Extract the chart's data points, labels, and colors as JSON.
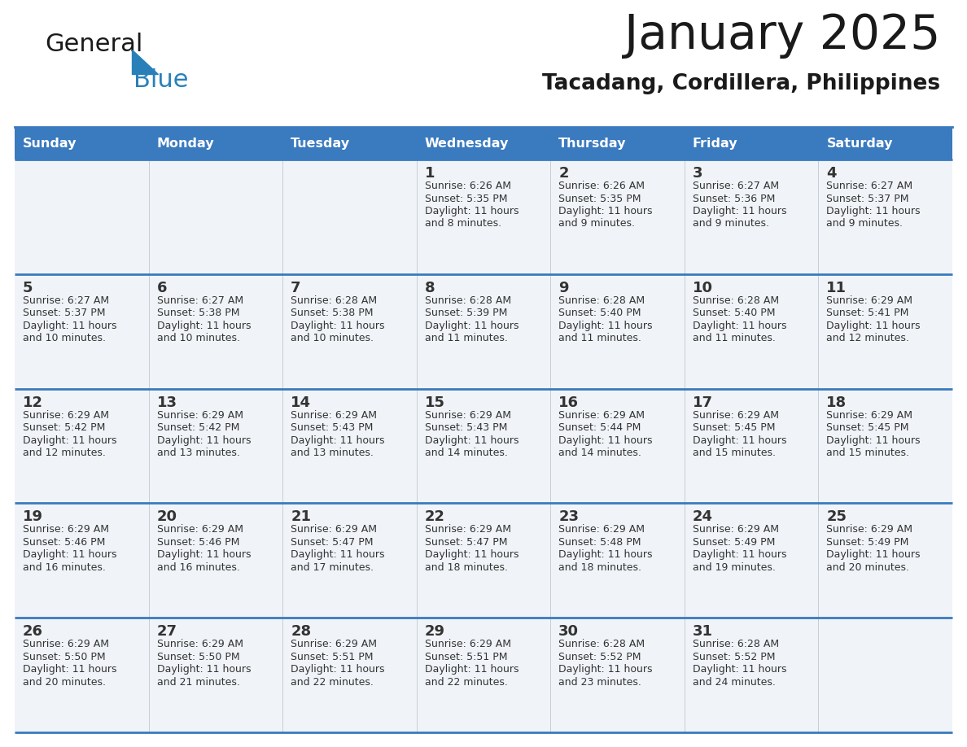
{
  "title": "January 2025",
  "subtitle": "Tacadang, Cordillera, Philippines",
  "days_of_week": [
    "Sunday",
    "Monday",
    "Tuesday",
    "Wednesday",
    "Thursday",
    "Friday",
    "Saturday"
  ],
  "header_bg": "#3a7abf",
  "header_text": "#ffffff",
  "cell_bg": "#f0f4f8",
  "cell_bg_alt": "#ffffff",
  "cell_text_color": "#333333",
  "divider_color": "#3a7abf",
  "title_color": "#1a1a1a",
  "subtitle_color": "#1a1a1a",
  "logo_general_color": "#1a1a1a",
  "logo_blue_color": "#2980b9",
  "triangle_color": "#2980b9",
  "calendar_data": [
    [
      null,
      null,
      null,
      {
        "day": 1,
        "sunrise": "6:26 AM",
        "sunset": "5:35 PM",
        "daylight": "11 hours and 8 minutes"
      },
      {
        "day": 2,
        "sunrise": "6:26 AM",
        "sunset": "5:35 PM",
        "daylight": "11 hours and 9 minutes"
      },
      {
        "day": 3,
        "sunrise": "6:27 AM",
        "sunset": "5:36 PM",
        "daylight": "11 hours and 9 minutes"
      },
      {
        "day": 4,
        "sunrise": "6:27 AM",
        "sunset": "5:37 PM",
        "daylight": "11 hours and 9 minutes"
      }
    ],
    [
      {
        "day": 5,
        "sunrise": "6:27 AM",
        "sunset": "5:37 PM",
        "daylight": "11 hours and 10 minutes"
      },
      {
        "day": 6,
        "sunrise": "6:27 AM",
        "sunset": "5:38 PM",
        "daylight": "11 hours and 10 minutes"
      },
      {
        "day": 7,
        "sunrise": "6:28 AM",
        "sunset": "5:38 PM",
        "daylight": "11 hours and 10 minutes"
      },
      {
        "day": 8,
        "sunrise": "6:28 AM",
        "sunset": "5:39 PM",
        "daylight": "11 hours and 11 minutes"
      },
      {
        "day": 9,
        "sunrise": "6:28 AM",
        "sunset": "5:40 PM",
        "daylight": "11 hours and 11 minutes"
      },
      {
        "day": 10,
        "sunrise": "6:28 AM",
        "sunset": "5:40 PM",
        "daylight": "11 hours and 11 minutes"
      },
      {
        "day": 11,
        "sunrise": "6:29 AM",
        "sunset": "5:41 PM",
        "daylight": "11 hours and 12 minutes"
      }
    ],
    [
      {
        "day": 12,
        "sunrise": "6:29 AM",
        "sunset": "5:42 PM",
        "daylight": "11 hours and 12 minutes"
      },
      {
        "day": 13,
        "sunrise": "6:29 AM",
        "sunset": "5:42 PM",
        "daylight": "11 hours and 13 minutes"
      },
      {
        "day": 14,
        "sunrise": "6:29 AM",
        "sunset": "5:43 PM",
        "daylight": "11 hours and 13 minutes"
      },
      {
        "day": 15,
        "sunrise": "6:29 AM",
        "sunset": "5:43 PM",
        "daylight": "11 hours and 14 minutes"
      },
      {
        "day": 16,
        "sunrise": "6:29 AM",
        "sunset": "5:44 PM",
        "daylight": "11 hours and 14 minutes"
      },
      {
        "day": 17,
        "sunrise": "6:29 AM",
        "sunset": "5:45 PM",
        "daylight": "11 hours and 15 minutes"
      },
      {
        "day": 18,
        "sunrise": "6:29 AM",
        "sunset": "5:45 PM",
        "daylight": "11 hours and 15 minutes"
      }
    ],
    [
      {
        "day": 19,
        "sunrise": "6:29 AM",
        "sunset": "5:46 PM",
        "daylight": "11 hours and 16 minutes"
      },
      {
        "day": 20,
        "sunrise": "6:29 AM",
        "sunset": "5:46 PM",
        "daylight": "11 hours and 16 minutes"
      },
      {
        "day": 21,
        "sunrise": "6:29 AM",
        "sunset": "5:47 PM",
        "daylight": "11 hours and 17 minutes"
      },
      {
        "day": 22,
        "sunrise": "6:29 AM",
        "sunset": "5:47 PM",
        "daylight": "11 hours and 18 minutes"
      },
      {
        "day": 23,
        "sunrise": "6:29 AM",
        "sunset": "5:48 PM",
        "daylight": "11 hours and 18 minutes"
      },
      {
        "day": 24,
        "sunrise": "6:29 AM",
        "sunset": "5:49 PM",
        "daylight": "11 hours and 19 minutes"
      },
      {
        "day": 25,
        "sunrise": "6:29 AM",
        "sunset": "5:49 PM",
        "daylight": "11 hours and 20 minutes"
      }
    ],
    [
      {
        "day": 26,
        "sunrise": "6:29 AM",
        "sunset": "5:50 PM",
        "daylight": "11 hours and 20 minutes"
      },
      {
        "day": 27,
        "sunrise": "6:29 AM",
        "sunset": "5:50 PM",
        "daylight": "11 hours and 21 minutes"
      },
      {
        "day": 28,
        "sunrise": "6:29 AM",
        "sunset": "5:51 PM",
        "daylight": "11 hours and 22 minutes"
      },
      {
        "day": 29,
        "sunrise": "6:29 AM",
        "sunset": "5:51 PM",
        "daylight": "11 hours and 22 minutes"
      },
      {
        "day": 30,
        "sunrise": "6:28 AM",
        "sunset": "5:52 PM",
        "daylight": "11 hours and 23 minutes"
      },
      {
        "day": 31,
        "sunrise": "6:28 AM",
        "sunset": "5:52 PM",
        "daylight": "11 hours and 24 minutes"
      },
      null
    ]
  ]
}
